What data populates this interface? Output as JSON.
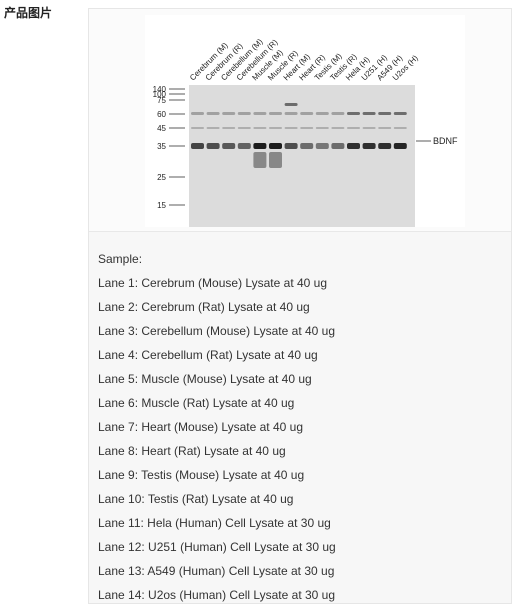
{
  "section_label": "产品图片",
  "figure": {
    "lane_labels": [
      "Cerebrum (M)",
      "Cerebrum (R)",
      "Cerebellum (M)",
      "Cerebellum (R)",
      "Muscle (M)",
      "Muscle (R)",
      "Heart (M)",
      "Heart (R)",
      "Testis (M)",
      "Testis (R)",
      "Hela (H)",
      "U251 (H)",
      "A549 (H)",
      "U2os (H)"
    ],
    "mw_markers": [
      "140",
      "100",
      "75",
      "60",
      "45",
      "35",
      "25",
      "15"
    ],
    "band_label": "BDNF"
  },
  "caption": {
    "heading": "Sample:",
    "lanes": [
      "Lane 1: Cerebrum (Mouse) Lysate at 40 ug",
      "Lane 2: Cerebrum (Rat) Lysate at 40 ug",
      "Lane 3: Cerebellum (Mouse) Lysate at 40 ug",
      "Lane 4: Cerebellum (Rat) Lysate at 40 ug",
      "Lane 5: Muscle (Mouse) Lysate at 40 ug",
      "Lane 6: Muscle (Rat) Lysate at 40 ug",
      "Lane 7: Heart (Mouse) Lysate at 40 ug",
      "Lane 8: Heart (Rat) Lysate at 40 ug",
      "Lane 9: Testis (Mouse) Lysate at 40 ug",
      "Lane 10: Testis (Rat) Lysate at 40 ug",
      "Lane 11: Hela (Human) Cell Lysate at 30 ug",
      "Lane 12: U251 (Human) Cell Lysate at 30 ug",
      "Lane 13: A549 (Human) Cell Lysate at 30 ug",
      "Lane 14: U2os (Human) Cell Lysate at 30 ug"
    ]
  }
}
